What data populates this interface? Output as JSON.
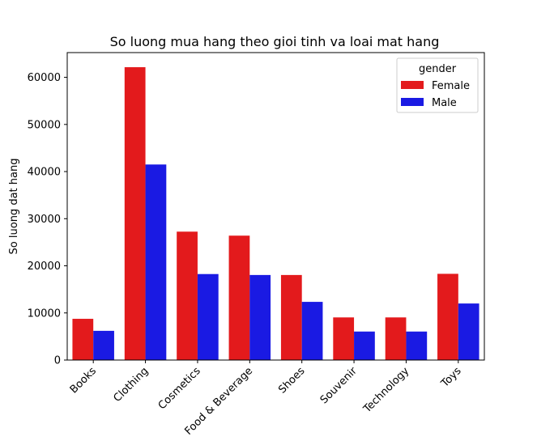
{
  "chart_data": {
    "type": "bar",
    "title": "So luong mua hang theo gioi tinh va loai mat hang",
    "xlabel": "",
    "ylabel": "So luong dat hang",
    "categories": [
      "Books",
      "Clothing",
      "Cosmetics",
      "Food & Beverage",
      "Shoes",
      "Souvenir",
      "Technology",
      "Toys"
    ],
    "series": [
      {
        "name": "Female",
        "color": "#e31a1c",
        "values": [
          8750,
          62150,
          27250,
          26400,
          18050,
          9050,
          9050,
          18300
        ]
      },
      {
        "name": "Male",
        "color": "#1a1ae3",
        "values": [
          6200,
          41500,
          18250,
          18050,
          12350,
          6050,
          6050,
          12000
        ]
      }
    ],
    "ylim": [
      0,
      65250
    ],
    "yticks": [
      0,
      10000,
      20000,
      30000,
      40000,
      50000,
      60000
    ],
    "ytick_labels": [
      "0",
      "10000",
      "20000",
      "30000",
      "40000",
      "50000",
      "60000"
    ],
    "legend": {
      "title": "gender",
      "position": "top-right"
    },
    "grid": false
  }
}
